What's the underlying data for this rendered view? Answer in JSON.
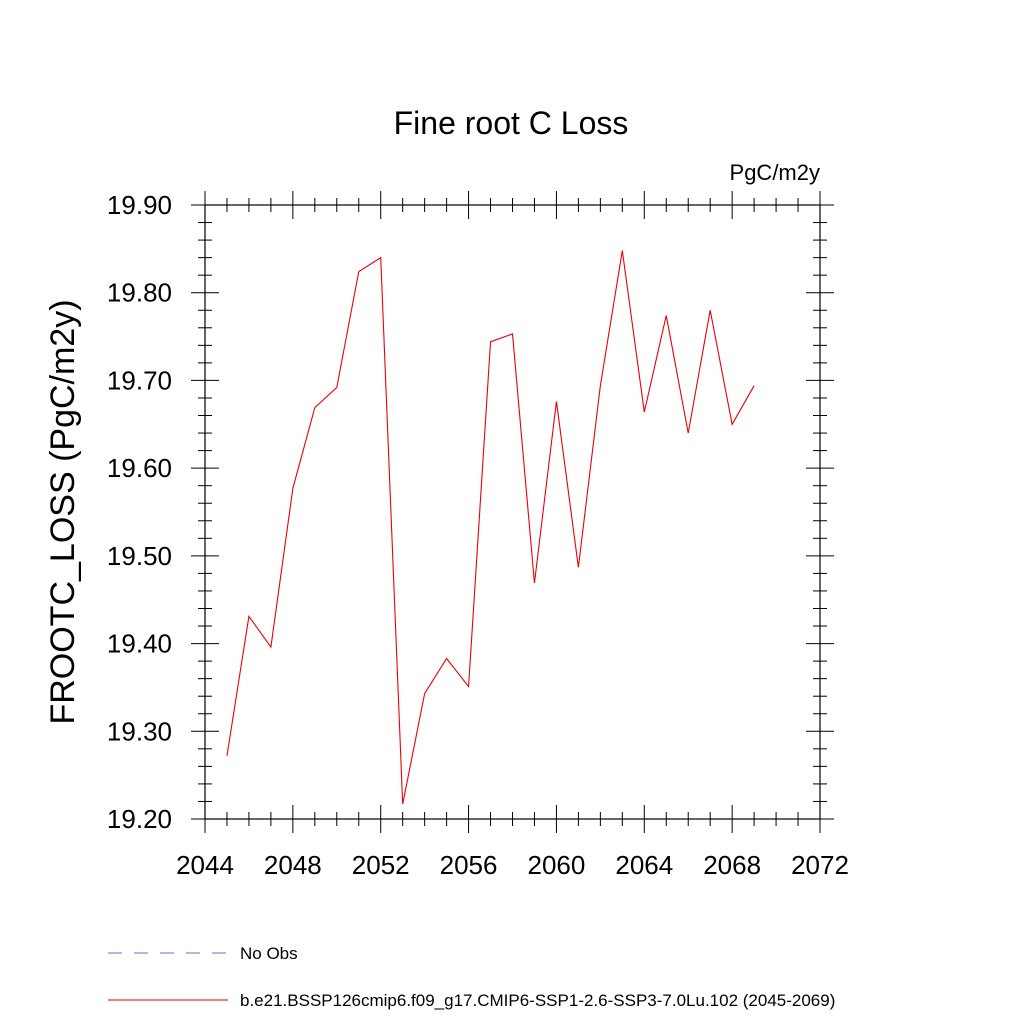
{
  "chart_data": {
    "type": "line",
    "title": "Fine root C Loss",
    "units_label": "PgC/m2y",
    "ylabel": "FROOTC_LOSS  (PgC/m2y)",
    "xlabel": "",
    "xlim": [
      2044,
      2072
    ],
    "ylim": [
      19.2,
      19.9
    ],
    "x_ticks": [
      2044,
      2048,
      2052,
      2056,
      2060,
      2064,
      2068,
      2072
    ],
    "x_tick_labels": [
      "2044",
      "2048",
      "2052",
      "2056",
      "2060",
      "2064",
      "2068",
      "2072"
    ],
    "y_ticks": [
      19.2,
      19.3,
      19.4,
      19.5,
      19.6,
      19.7,
      19.8,
      19.9
    ],
    "y_tick_labels": [
      "19.20",
      "19.30",
      "19.40",
      "19.50",
      "19.60",
      "19.70",
      "19.80",
      "19.90"
    ],
    "grid": false,
    "legend_position": "bottom",
    "legend": [
      {
        "label": "No Obs",
        "color": "#7b68c8",
        "style": "dashed"
      },
      {
        "label": "b.e21.BSSP126cmip6.f09_g17.CMIP6-SSP1-2.6-SSP3-7.0Lu.102 (2045-2069)",
        "color": "#e8000b",
        "style": "solid"
      }
    ],
    "series": [
      {
        "name": "b.e21.BSSP126cmip6.f09_g17.CMIP6-SSP1-2.6-SSP3-7.0Lu.102 (2045-2069)",
        "color": "#e8000b",
        "x": [
          2045,
          2046,
          2047,
          2048,
          2049,
          2050,
          2051,
          2052,
          2053,
          2054,
          2055,
          2056,
          2057,
          2058,
          2059,
          2060,
          2061,
          2062,
          2063,
          2064,
          2065,
          2066,
          2067,
          2068,
          2069
        ],
        "values": [
          19.272,
          19.431,
          19.396,
          19.577,
          19.669,
          19.692,
          19.824,
          19.84,
          19.217,
          19.343,
          19.383,
          19.351,
          19.744,
          19.753,
          19.469,
          19.676,
          19.487,
          19.694,
          19.848,
          19.664,
          19.774,
          19.64,
          19.78,
          19.65,
          19.694
        ]
      }
    ]
  }
}
